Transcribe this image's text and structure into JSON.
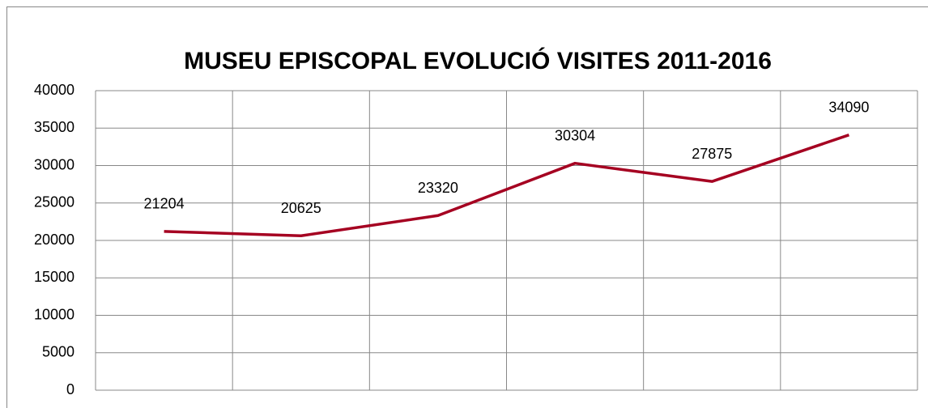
{
  "chart_data": {
    "type": "line",
    "title": "MUSEU EPISCOPAL EVOLUCIÓ VISITES 2011-2016",
    "categories": [
      null,
      null,
      null,
      null,
      null,
      null
    ],
    "series": [
      {
        "name": null,
        "color": "#a50021",
        "values": [
          21204,
          20625,
          23320,
          30304,
          27875,
          34090
        ]
      }
    ],
    "ylim": [
      0,
      40000
    ],
    "yticks": [
      0,
      5000,
      10000,
      15000,
      20000,
      25000,
      30000,
      35000,
      40000
    ],
    "grid": true,
    "data_labels": true
  }
}
